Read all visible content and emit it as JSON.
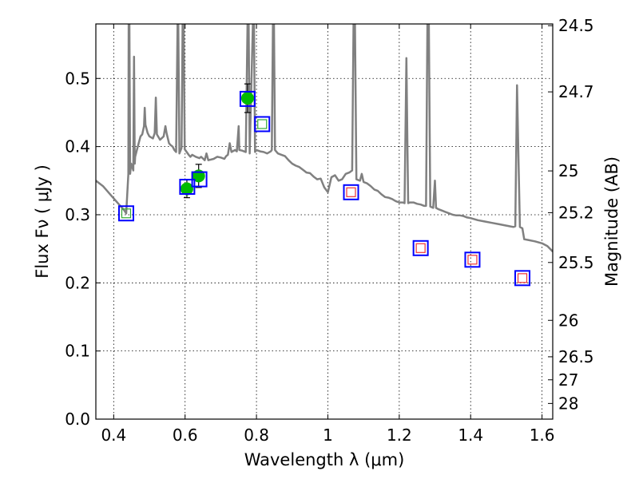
{
  "chart_data": {
    "type": "scatter",
    "xlabel": "Wavelength  λ (μm)",
    "ylabel": "Flux  Fν ( μJy )",
    "ylabel_right": "Magnitude (AB)",
    "xlim": [
      0.35,
      1.63
    ],
    "ylim": [
      0.0,
      0.58
    ],
    "grid": true,
    "x_ticks": [
      {
        "value": 0.4,
        "label": "0.4"
      },
      {
        "value": 0.6,
        "label": "0.6"
      },
      {
        "value": 0.8,
        "label": "0.8"
      },
      {
        "value": 1.0,
        "label": "1"
      },
      {
        "value": 1.2,
        "label": "1.2"
      },
      {
        "value": 1.4,
        "label": "1.4"
      },
      {
        "value": 1.6,
        "label": "1.6"
      }
    ],
    "y_ticks": [
      {
        "value": 0.0,
        "label": "0.0"
      },
      {
        "value": 0.1,
        "label": "0.1"
      },
      {
        "value": 0.2,
        "label": "0.2"
      },
      {
        "value": 0.3,
        "label": "0.3"
      },
      {
        "value": 0.4,
        "label": "0.4"
      },
      {
        "value": 0.5,
        "label": "0.5"
      }
    ],
    "y2_ticks": [
      {
        "label": "24.5",
        "flux": 0.5775
      },
      {
        "label": "24.7",
        "flux": 0.4803
      },
      {
        "label": "25",
        "flux": 0.3643
      },
      {
        "label": "25.2",
        "flux": 0.303
      },
      {
        "label": "25.5",
        "flux": 0.2299
      },
      {
        "label": "26",
        "flux": 0.145
      },
      {
        "label": "26.5",
        "flux": 0.0915
      },
      {
        "label": "27",
        "flux": 0.0577
      },
      {
        "label": "28",
        "flux": 0.023
      }
    ],
    "series": [
      {
        "marker": "filled-circle",
        "color": "#00bb00",
        "points": [
          {
            "x": 0.605,
            "y": 0.338,
            "yerr": 0.013
          },
          {
            "x": 0.638,
            "y": 0.357,
            "yerr": 0.017
          },
          {
            "x": 0.775,
            "y": 0.471,
            "yerr": 0.021
          }
        ]
      },
      {
        "marker": "open-square",
        "color": "#0000ff",
        "points": [
          {
            "x": 0.435,
            "y": 0.302
          },
          {
            "x": 0.606,
            "y": 0.341
          },
          {
            "x": 0.64,
            "y": 0.352
          },
          {
            "x": 0.775,
            "y": 0.47
          },
          {
            "x": 0.816,
            "y": 0.433
          },
          {
            "x": 1.065,
            "y": 0.333
          },
          {
            "x": 1.26,
            "y": 0.251
          },
          {
            "x": 1.405,
            "y": 0.234
          },
          {
            "x": 1.545,
            "y": 0.207
          }
        ]
      },
      {
        "marker": "small-square",
        "color": "#33aa33",
        "points": [
          {
            "x": 0.435,
            "y": 0.302
          },
          {
            "x": 0.816,
            "y": 0.433
          }
        ]
      },
      {
        "marker": "small-square",
        "color": "#ee3333",
        "points": [
          {
            "x": 1.065,
            "y": 0.333
          },
          {
            "x": 1.26,
            "y": 0.251
          },
          {
            "x": 1.405,
            "y": 0.234
          },
          {
            "x": 1.545,
            "y": 0.207
          }
        ]
      }
    ],
    "model_spectrum": {
      "color": "#808080",
      "points": [
        [
          0.35,
          0.35
        ],
        [
          0.37,
          0.342
        ],
        [
          0.39,
          0.33
        ],
        [
          0.41,
          0.318
        ],
        [
          0.42,
          0.312
        ],
        [
          0.43,
          0.306
        ],
        [
          0.435,
          0.302
        ],
        [
          0.438,
          0.33
        ],
        [
          0.441,
          0.36
        ],
        [
          0.442,
          0.58
        ],
        [
          0.444,
          0.58
        ],
        [
          0.446,
          0.36
        ],
        [
          0.449,
          0.375
        ],
        [
          0.452,
          0.37
        ],
        [
          0.455,
          0.365
        ],
        [
          0.457,
          0.532
        ],
        [
          0.459,
          0.375
        ],
        [
          0.46,
          0.385
        ],
        [
          0.47,
          0.405
        ],
        [
          0.475,
          0.415
        ],
        [
          0.48,
          0.418
        ],
        [
          0.485,
          0.43
        ],
        [
          0.487,
          0.457
        ],
        [
          0.489,
          0.432
        ],
        [
          0.495,
          0.42
        ],
        [
          0.5,
          0.415
        ],
        [
          0.51,
          0.412
        ],
        [
          0.515,
          0.42
        ],
        [
          0.518,
          0.472
        ],
        [
          0.521,
          0.418
        ],
        [
          0.53,
          0.41
        ],
        [
          0.54,
          0.415
        ],
        [
          0.545,
          0.43
        ],
        [
          0.548,
          0.42
        ],
        [
          0.555,
          0.405
        ],
        [
          0.56,
          0.402
        ],
        [
          0.565,
          0.4
        ],
        [
          0.57,
          0.395
        ],
        [
          0.575,
          0.392
        ],
        [
          0.579,
          0.58
        ],
        [
          0.581,
          0.58
        ],
        [
          0.584,
          0.39
        ],
        [
          0.59,
          0.398
        ],
        [
          0.593,
          0.58
        ],
        [
          0.596,
          0.58
        ],
        [
          0.599,
          0.396
        ],
        [
          0.61,
          0.388
        ],
        [
          0.615,
          0.385
        ],
        [
          0.62,
          0.388
        ],
        [
          0.63,
          0.385
        ],
        [
          0.64,
          0.383
        ],
        [
          0.645,
          0.385
        ],
        [
          0.655,
          0.38
        ],
        [
          0.66,
          0.39
        ],
        [
          0.665,
          0.38
        ],
        [
          0.68,
          0.382
        ],
        [
          0.69,
          0.385
        ],
        [
          0.7,
          0.384
        ],
        [
          0.71,
          0.382
        ],
        [
          0.715,
          0.386
        ],
        [
          0.72,
          0.388
        ],
        [
          0.725,
          0.405
        ],
        [
          0.73,
          0.392
        ],
        [
          0.74,
          0.395
        ],
        [
          0.745,
          0.393
        ],
        [
          0.75,
          0.43
        ],
        [
          0.752,
          0.395
        ],
        [
          0.76,
          0.394
        ],
        [
          0.77,
          0.392
        ],
        [
          0.775,
          0.58
        ],
        [
          0.778,
          0.58
        ],
        [
          0.781,
          0.39
        ],
        [
          0.79,
          0.58
        ],
        [
          0.793,
          0.58
        ],
        [
          0.796,
          0.392
        ],
        [
          0.8,
          0.395
        ],
        [
          0.81,
          0.393
        ],
        [
          0.82,
          0.392
        ],
        [
          0.83,
          0.39
        ],
        [
          0.84,
          0.393
        ],
        [
          0.843,
          0.395
        ],
        [
          0.846,
          0.58
        ],
        [
          0.849,
          0.58
        ],
        [
          0.852,
          0.395
        ],
        [
          0.86,
          0.39
        ],
        [
          0.87,
          0.388
        ],
        [
          0.88,
          0.386
        ],
        [
          0.89,
          0.38
        ],
        [
          0.9,
          0.375
        ],
        [
          0.91,
          0.372
        ],
        [
          0.92,
          0.37
        ],
        [
          0.93,
          0.366
        ],
        [
          0.94,
          0.362
        ],
        [
          0.95,
          0.361
        ],
        [
          0.96,
          0.356
        ],
        [
          0.97,
          0.352
        ],
        [
          0.98,
          0.353
        ],
        [
          0.99,
          0.34
        ],
        [
          1.0,
          0.333
        ],
        [
          1.01,
          0.355
        ],
        [
          1.02,
          0.358
        ],
        [
          1.03,
          0.35
        ],
        [
          1.04,
          0.352
        ],
        [
          1.05,
          0.36
        ],
        [
          1.06,
          0.362
        ],
        [
          1.068,
          0.365
        ],
        [
          1.072,
          0.58
        ],
        [
          1.076,
          0.58
        ],
        [
          1.08,
          0.352
        ],
        [
          1.09,
          0.35
        ],
        [
          1.095,
          0.36
        ],
        [
          1.1,
          0.348
        ],
        [
          1.11,
          0.346
        ],
        [
          1.12,
          0.342
        ],
        [
          1.13,
          0.337
        ],
        [
          1.14,
          0.335
        ],
        [
          1.15,
          0.33
        ],
        [
          1.16,
          0.326
        ],
        [
          1.17,
          0.325
        ],
        [
          1.18,
          0.323
        ],
        [
          1.19,
          0.32
        ],
        [
          1.2,
          0.318
        ],
        [
          1.21,
          0.318
        ],
        [
          1.215,
          0.317
        ],
        [
          1.218,
          0.445
        ],
        [
          1.22,
          0.53
        ],
        [
          1.223,
          0.4
        ],
        [
          1.225,
          0.317
        ],
        [
          1.23,
          0.318
        ],
        [
          1.24,
          0.318
        ],
        [
          1.25,
          0.316
        ],
        [
          1.26,
          0.315
        ],
        [
          1.27,
          0.313
        ],
        [
          1.275,
          0.313
        ],
        [
          1.279,
          0.58
        ],
        [
          1.283,
          0.58
        ],
        [
          1.287,
          0.312
        ],
        [
          1.295,
          0.31
        ],
        [
          1.3,
          0.35
        ],
        [
          1.303,
          0.31
        ],
        [
          1.31,
          0.308
        ],
        [
          1.32,
          0.306
        ],
        [
          1.33,
          0.304
        ],
        [
          1.34,
          0.302
        ],
        [
          1.35,
          0.3
        ],
        [
          1.36,
          0.299
        ],
        [
          1.37,
          0.299
        ],
        [
          1.38,
          0.298
        ],
        [
          1.39,
          0.296
        ],
        [
          1.4,
          0.295
        ],
        [
          1.42,
          0.292
        ],
        [
          1.44,
          0.29
        ],
        [
          1.46,
          0.288
        ],
        [
          1.48,
          0.286
        ],
        [
          1.5,
          0.284
        ],
        [
          1.51,
          0.283
        ],
        [
          1.52,
          0.282
        ],
        [
          1.525,
          0.283
        ],
        [
          1.53,
          0.49
        ],
        [
          1.534,
          0.383
        ],
        [
          1.538,
          0.282
        ],
        [
          1.545,
          0.28
        ],
        [
          1.55,
          0.264
        ],
        [
          1.56,
          0.263
        ],
        [
          1.58,
          0.261
        ],
        [
          1.6,
          0.258
        ],
        [
          1.615,
          0.254
        ],
        [
          1.63,
          0.246
        ]
      ]
    }
  }
}
